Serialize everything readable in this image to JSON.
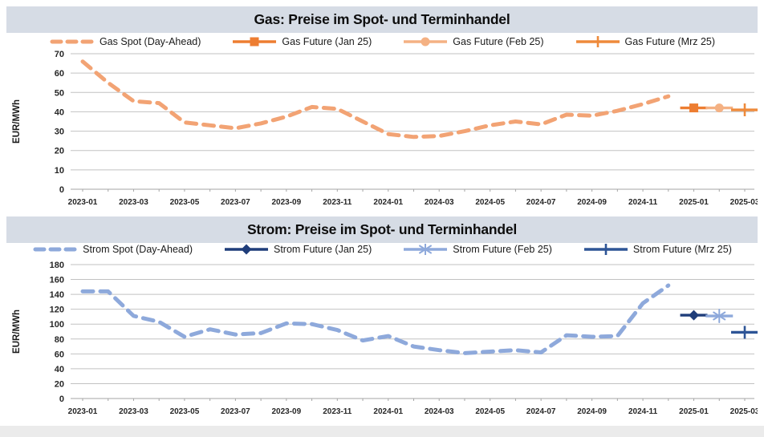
{
  "page": {
    "background": "#FFFFFF",
    "bottom_bar_color": "#EBEBEB",
    "title_bar_color": "#D6DCE5"
  },
  "chart_data": [
    {
      "type": "line",
      "title": "Gas: Preise im Spot- und Terminhandel",
      "ylabel": "EUR/MWh",
      "ylim": [
        0,
        70
      ],
      "ytick_step": 10,
      "grid": true,
      "legend_position": "top",
      "xtick_every": 2,
      "x": [
        "2023-01",
        "2023-02",
        "2023-03",
        "2023-04",
        "2023-05",
        "2023-06",
        "2023-07",
        "2023-08",
        "2023-09",
        "2023-10",
        "2023-11",
        "2023-12",
        "2024-01",
        "2024-02",
        "2024-03",
        "2024-04",
        "2024-05",
        "2024-06",
        "2024-07",
        "2024-08",
        "2024-09",
        "2024-10",
        "2024-11",
        "2024-12",
        "2025-01",
        "2025-02",
        "2025-03"
      ],
      "xtick_labels": [
        "2023-01",
        "2023-03",
        "2023-05",
        "2023-07",
        "2023-09",
        "2023-11",
        "2024-01",
        "2024-03",
        "2024-05",
        "2024-07",
        "2024-09",
        "2024-11",
        "2025-01",
        "2025-03"
      ],
      "series": [
        {
          "name": "Gas Spot (Day-Ahead)",
          "type": "dashed-line",
          "marker": "none",
          "color": "#F2A374",
          "values": [
            66,
            55,
            45.5,
            44.5,
            34.5,
            33,
            31.5,
            34,
            37.5,
            42.5,
            41.5,
            35,
            28.5,
            27,
            27.5,
            30,
            33,
            35,
            33.5,
            38.5,
            38,
            40.5,
            44,
            48,
            null,
            null,
            null
          ]
        },
        {
          "name": "Gas Future (Jan 25)",
          "type": "segment",
          "marker": "square",
          "color": "#ED7D31",
          "x": "2025-01",
          "value": 42
        },
        {
          "name": "Gas Future (Feb 25)",
          "type": "segment",
          "marker": "circle",
          "color": "#F4B183",
          "x": "2025-02",
          "value": 42
        },
        {
          "name": "Gas Future (Mrz 25)",
          "type": "segment",
          "marker": "plus",
          "color": "#EE8A3B",
          "x": "2025-03",
          "value": 41
        }
      ]
    },
    {
      "type": "line",
      "title": "Strom: Preise im Spot- und Terminhandel",
      "ylabel": "EUR/MWh",
      "ylim": [
        0,
        180
      ],
      "ytick_step": 20,
      "grid": true,
      "legend_position": "top",
      "xtick_every": 2,
      "x": [
        "2023-01",
        "2023-02",
        "2023-03",
        "2023-04",
        "2023-05",
        "2023-06",
        "2023-07",
        "2023-08",
        "2023-09",
        "2023-10",
        "2023-11",
        "2023-12",
        "2024-01",
        "2024-02",
        "2024-03",
        "2024-04",
        "2024-05",
        "2024-06",
        "2024-07",
        "2024-08",
        "2024-09",
        "2024-10",
        "2024-11",
        "2024-12",
        "2025-01",
        "2025-02",
        "2025-03"
      ],
      "xtick_labels": [
        "2023-01",
        "2023-03",
        "2023-05",
        "2023-07",
        "2023-09",
        "2023-11",
        "2024-01",
        "2024-03",
        "2024-05",
        "2024-07",
        "2024-09",
        "2024-11",
        "2025-01",
        "2025-03"
      ],
      "series": [
        {
          "name": "Strom Spot (Day-Ahead)",
          "type": "dashed-line",
          "marker": "none",
          "color": "#8EA9DB",
          "values": [
            144,
            144,
            111,
            103,
            83,
            93,
            86,
            88,
            101,
            100,
            92,
            78,
            84,
            70,
            65,
            61,
            63,
            65,
            62,
            85,
            83,
            84,
            128,
            152,
            null,
            null,
            null
          ]
        },
        {
          "name": "Strom Future (Jan 25)",
          "type": "segment",
          "marker": "diamond",
          "color": "#1F3D7A",
          "x": "2025-01",
          "value": 112
        },
        {
          "name": "Strom Future (Feb 25)",
          "type": "segment",
          "marker": "asterisk",
          "color": "#8EA9DB",
          "x": "2025-02",
          "value": 111
        },
        {
          "name": "Strom Future (Mrz 25)",
          "type": "segment",
          "marker": "plus",
          "color": "#2E5596",
          "x": "2025-03",
          "value": 89
        }
      ]
    }
  ]
}
